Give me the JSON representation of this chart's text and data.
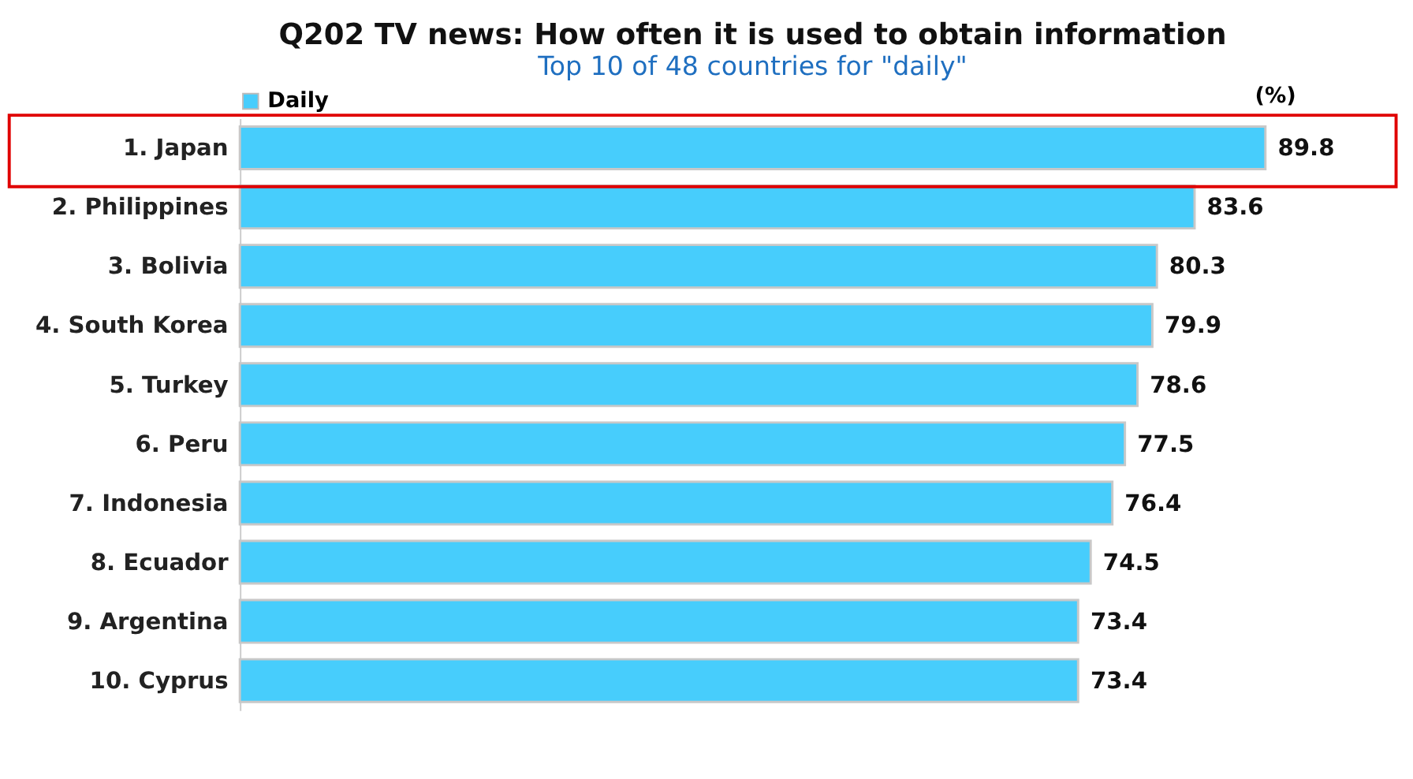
{
  "chart_data": {
    "type": "bar",
    "orientation": "horizontal",
    "title": "Q202 TV news: How often it is used to obtain information",
    "subtitle": "Top 10 of 48 countries for \"daily\"",
    "categories": [
      "1. Japan",
      "2. Philippines",
      "3. Bolivia",
      "4. South Korea",
      "5. Turkey",
      "6. Peru",
      "7. Indonesia",
      "8. Ecuador",
      "9. Argentina",
      "10. Cyprus"
    ],
    "series": [
      {
        "name": "Daily",
        "color": "#47cdfc",
        "values": [
          89.8,
          83.6,
          80.3,
          79.9,
          78.6,
          77.5,
          76.4,
          74.5,
          73.4,
          73.4
        ]
      }
    ],
    "data_labels": true,
    "legend": "top",
    "grid": false,
    "annotations": [
      "(%)"
    ]
  }
}
